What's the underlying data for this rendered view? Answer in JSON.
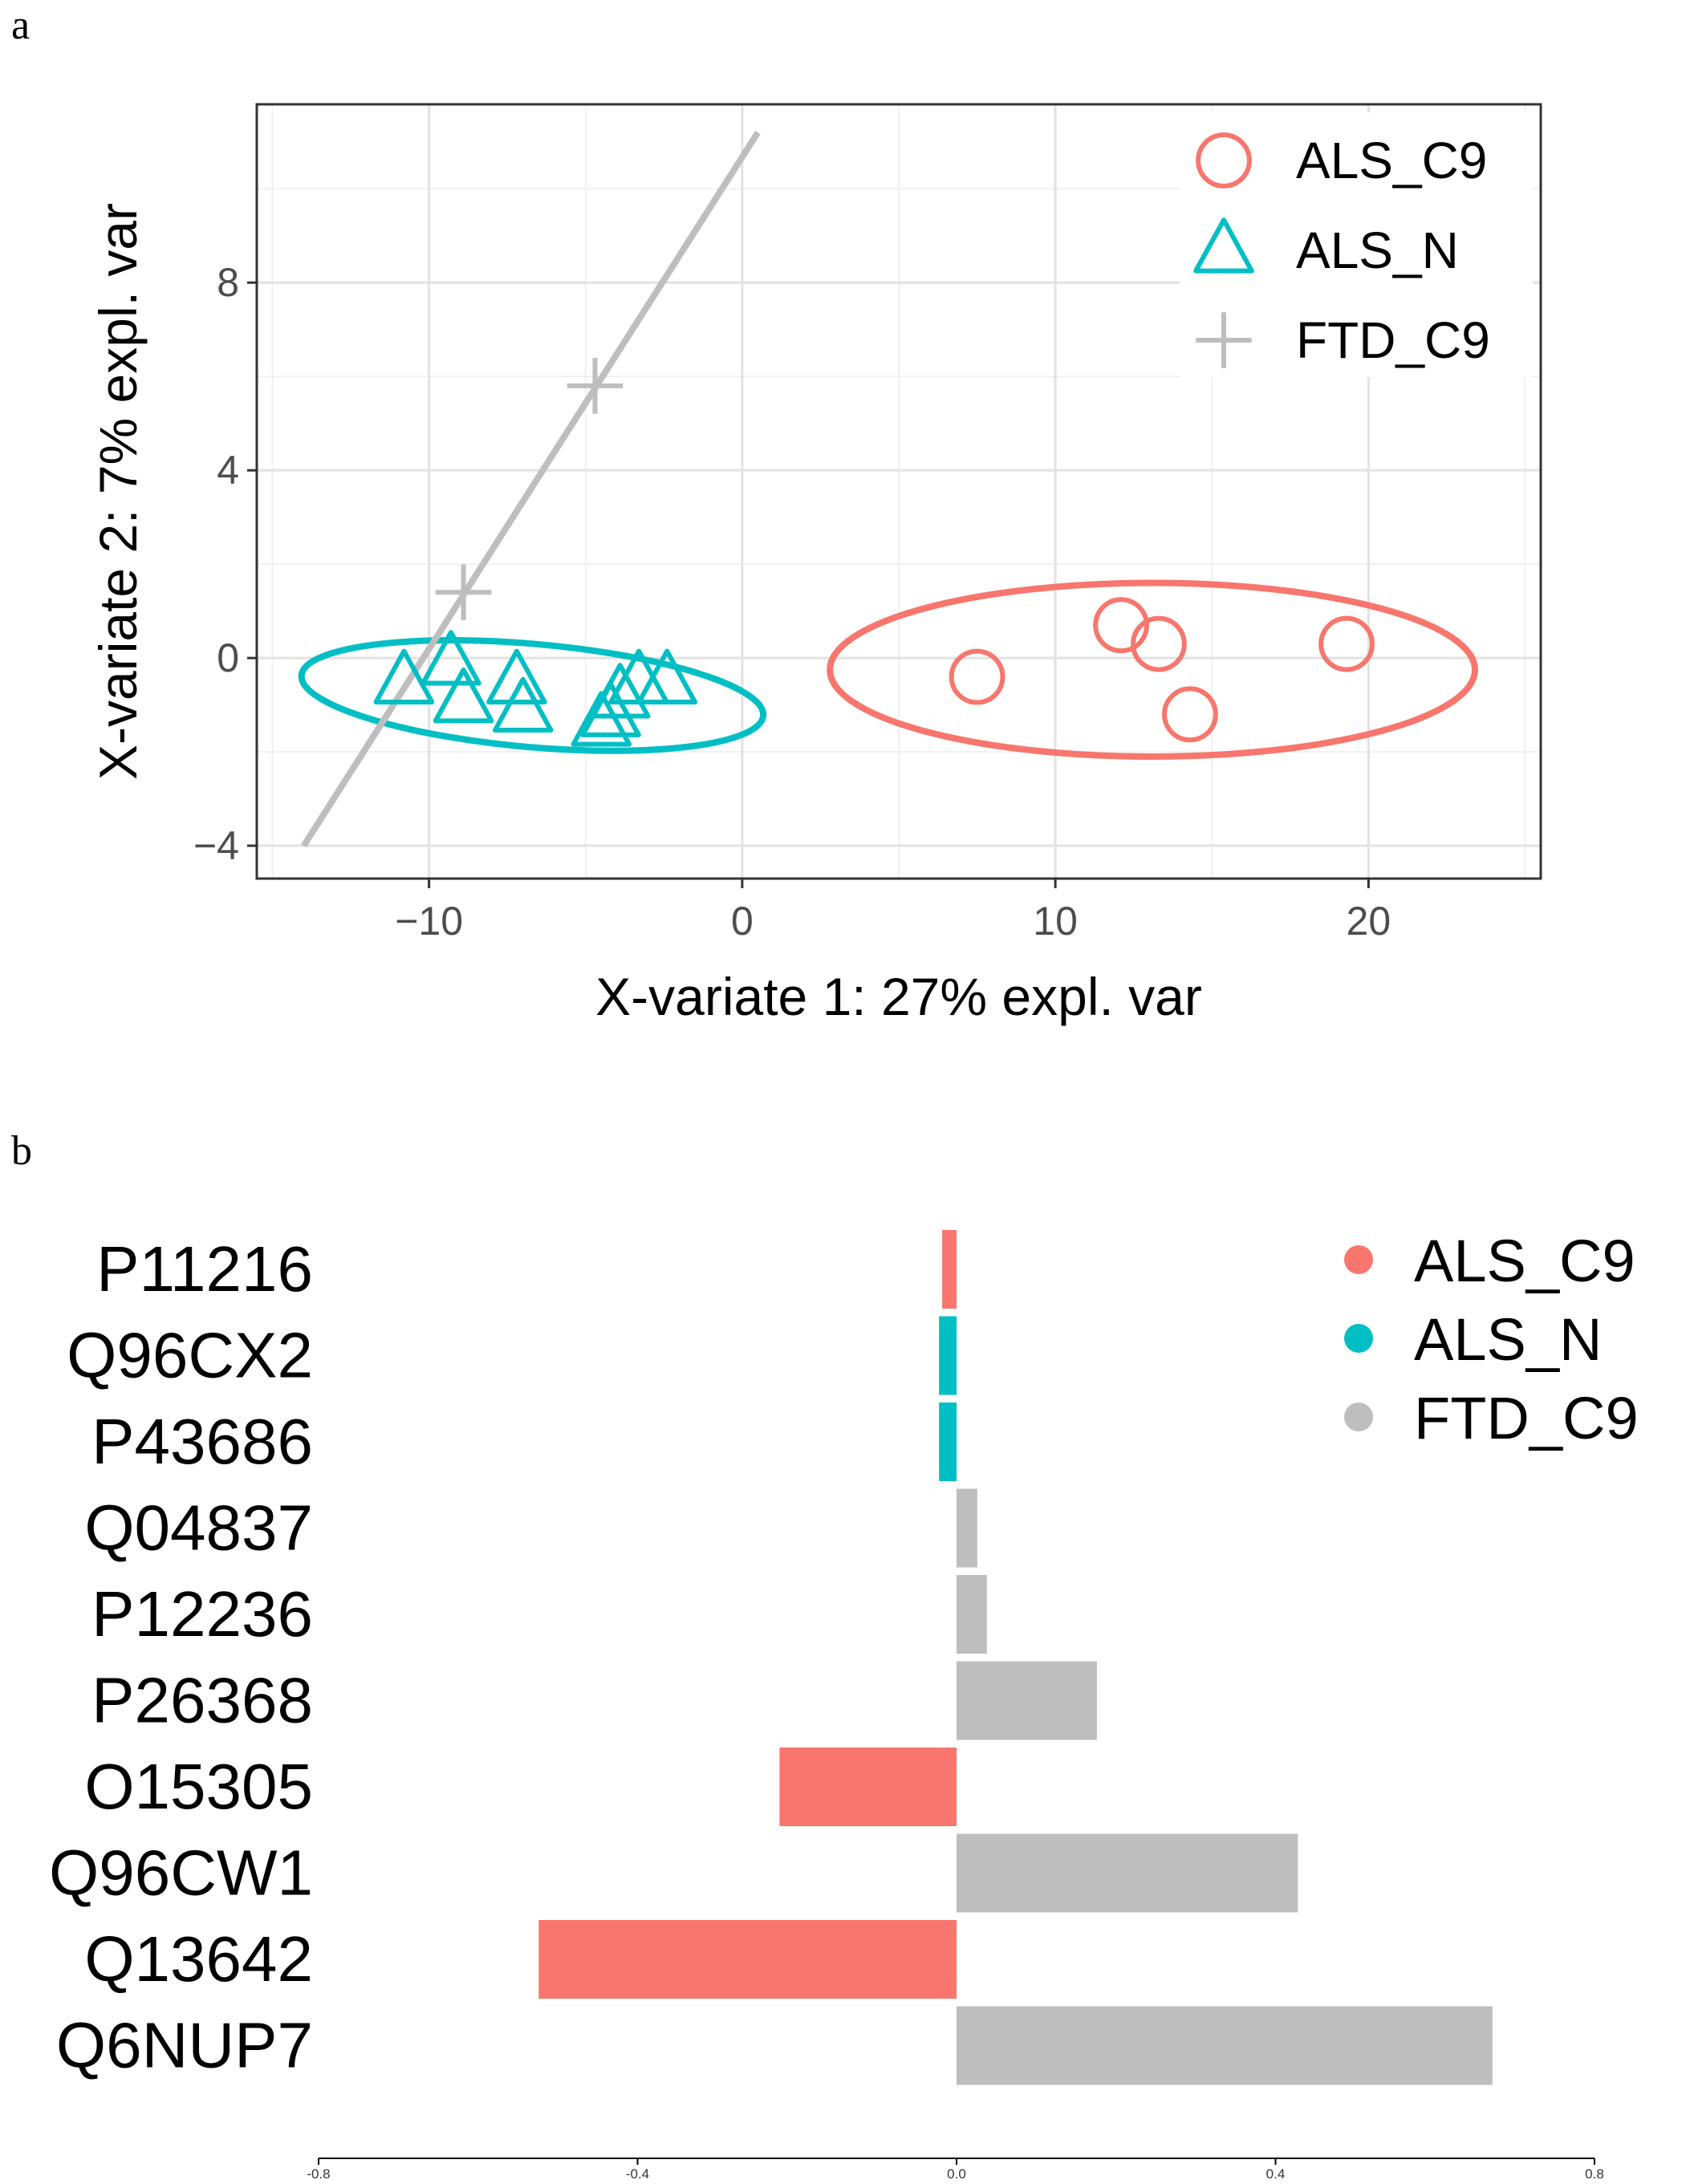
{
  "panels": {
    "a": "a",
    "b": "b"
  },
  "colors": {
    "ALS_C9": "#F8766D",
    "ALS_N": "#00BFC4",
    "FTD_C9": "#BEBEBE"
  },
  "chart_data": [
    {
      "type": "scatter",
      "title": "",
      "xlabel": "X-variate 1: 27% expl. var",
      "ylabel": "X-variate 2: 7% expl. var",
      "xlim": [
        -15.5,
        25.5
      ],
      "ylim": [
        -4.7,
        11.8
      ],
      "x_ticks": [
        -10,
        0,
        10,
        20
      ],
      "x_tick_labels": [
        "−10",
        "0",
        "10",
        "20"
      ],
      "y_ticks": [
        -4,
        0,
        4,
        8
      ],
      "y_tick_labels": [
        "−4",
        "0",
        "4",
        "8"
      ],
      "grid": true,
      "legend_position": "top-right",
      "series": [
        {
          "name": "ALS_C9",
          "marker": "circle",
          "points": [
            [
              7.5,
              -0.4
            ],
            [
              12.1,
              0.7
            ],
            [
              13.3,
              0.3
            ],
            [
              14.3,
              -1.2
            ],
            [
              19.3,
              0.3
            ]
          ],
          "ellipse": {
            "center": [
              13.1,
              -0.25
            ],
            "semi_x": 10.3,
            "semi_y": 1.85,
            "angle_deg": 0
          }
        },
        {
          "name": "ALS_N",
          "marker": "triangle",
          "points": [
            [
              -10.8,
              -0.5
            ],
            [
              -9.3,
              -0.1
            ],
            [
              -8.9,
              -0.9
            ],
            [
              -7.2,
              -0.5
            ],
            [
              -7.0,
              -1.1
            ],
            [
              -4.2,
              -1.2
            ],
            [
              -3.9,
              -0.8
            ],
            [
              -3.3,
              -0.5
            ],
            [
              -2.4,
              -0.5
            ],
            [
              -4.5,
              -1.4
            ]
          ],
          "ellipse": {
            "center": [
              -6.7,
              -0.8
            ],
            "semi_x": 7.4,
            "semi_y": 1.1,
            "angle_deg": -5
          }
        },
        {
          "name": "FTD_C9",
          "marker": "plus",
          "points": [
            [
              -8.9,
              1.4
            ],
            [
              -4.7,
              5.8
            ]
          ],
          "line": [
            [
              -14.0,
              -4.0
            ],
            [
              0.5,
              11.2
            ]
          ]
        }
      ]
    },
    {
      "type": "bar",
      "orientation": "horizontal",
      "categories": [
        "P11216",
        "Q96CX2",
        "P43686",
        "Q04837",
        "P12236",
        "P26368",
        "O15305",
        "Q96CW1",
        "Q13642",
        "Q6NUP7"
      ],
      "values": [
        -0.018,
        -0.022,
        -0.022,
        0.026,
        0.038,
        0.176,
        -0.222,
        0.428,
        -0.524,
        0.672
      ],
      "groups": [
        "ALS_C9",
        "ALS_N",
        "ALS_N",
        "FTD_C9",
        "FTD_C9",
        "FTD_C9",
        "ALS_C9",
        "FTD_C9",
        "ALS_C9",
        "FTD_C9"
      ],
      "xlim": [
        -0.8,
        0.8
      ],
      "x_ticks": [
        -0.8,
        -0.4,
        0.0,
        0.4,
        0.8
      ],
      "x_tick_labels": [
        "-0.8",
        "-0.4",
        "0.0",
        "0.4",
        "0.8"
      ],
      "legend": [
        "ALS_C9",
        "ALS_N",
        "FTD_C9"
      ],
      "legend_position": "top-right",
      "title": "",
      "xlabel": "",
      "ylabel": ""
    }
  ]
}
